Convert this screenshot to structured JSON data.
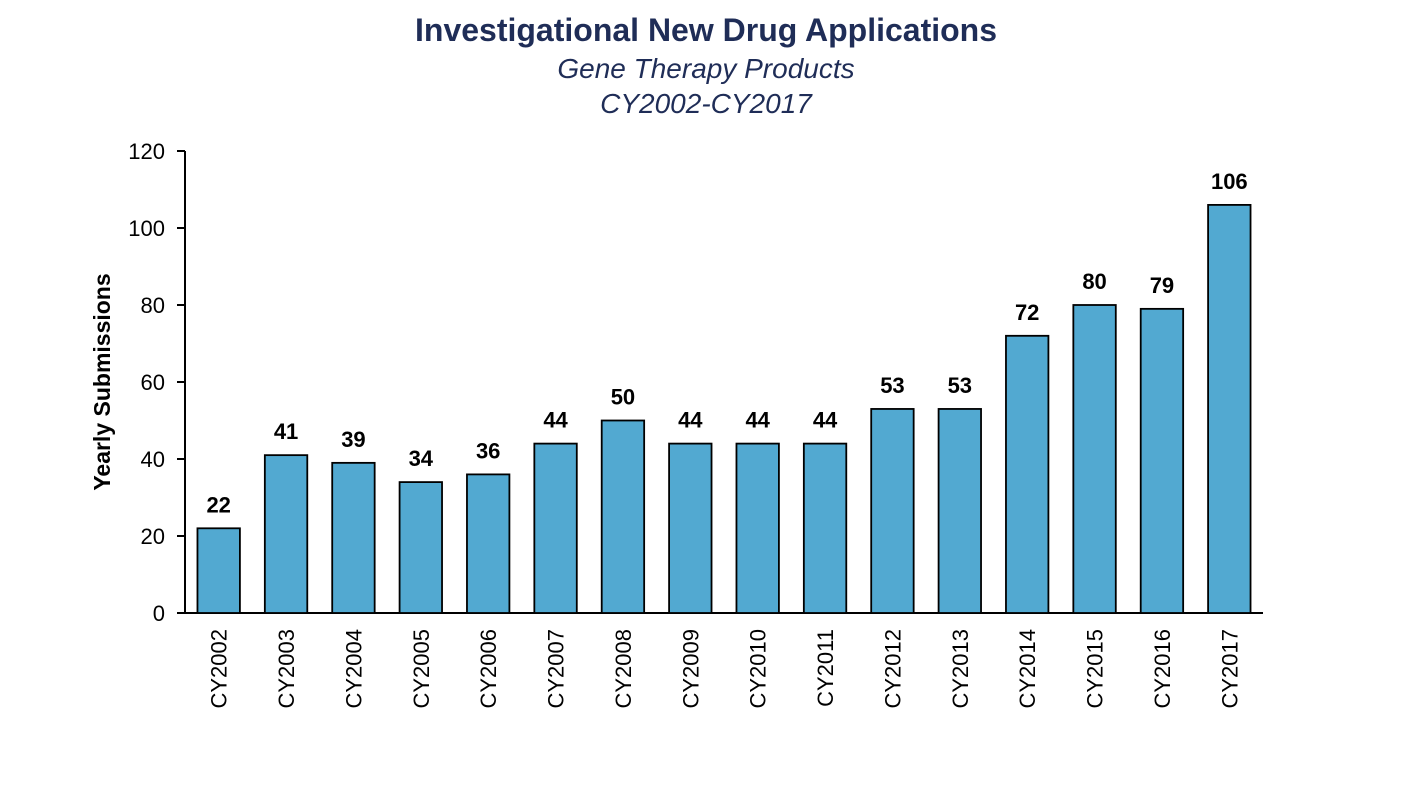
{
  "chart_data": {
    "type": "bar",
    "title": "Investigational New Drug Applications",
    "subtitle_lines": [
      "Gene Therapy Products",
      "CY2002-CY2017"
    ],
    "xlabel": "",
    "ylabel": "Yearly Submissions",
    "ylim": [
      0,
      120
    ],
    "yticks": [
      0,
      20,
      40,
      60,
      80,
      100,
      120
    ],
    "categories": [
      "CY2002",
      "CY2003",
      "CY2004",
      "CY2005",
      "CY2006",
      "CY2007",
      "CY2008",
      "CY2009",
      "CY2010",
      "CY2011",
      "CY2012",
      "CY2013",
      "CY2014",
      "CY2015",
      "CY2016",
      "CY2017"
    ],
    "values": [
      22,
      41,
      39,
      34,
      36,
      44,
      50,
      44,
      44,
      44,
      53,
      53,
      72,
      80,
      79,
      106
    ],
    "data_labels": true,
    "grid": false,
    "legend": "none",
    "colors": {
      "bar_fill": "#52a9d1",
      "bar_stroke": "#000000",
      "title": "#1f2d57",
      "text": "#000000"
    }
  }
}
